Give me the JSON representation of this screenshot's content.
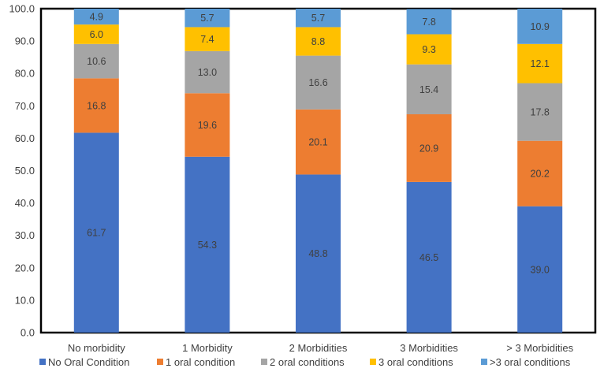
{
  "chart_data": {
    "type": "bar",
    "stacked": true,
    "title": "",
    "xlabel": "",
    "ylabel": "",
    "ylim": [
      0,
      100
    ],
    "yticks": [
      "0.0",
      "10.0",
      "20.0",
      "30.0",
      "40.0",
      "50.0",
      "60.0",
      "70.0",
      "80.0",
      "90.0",
      "100.0"
    ],
    "ytick_values": [
      0,
      10,
      20,
      30,
      40,
      50,
      60,
      70,
      80,
      90,
      100
    ],
    "grid": false,
    "legend_position": "bottom",
    "categories": [
      "No morbidity",
      "1 Morbidity",
      "2 Morbidities",
      "3 Morbidities",
      "> 3 Morbidities"
    ],
    "series": [
      {
        "name": "No Oral Condition",
        "color": "#4472C4",
        "values": [
          61.7,
          54.3,
          48.8,
          46.5,
          39.0
        ],
        "labels": [
          "61.7",
          "54.3",
          "48.8",
          "46.5",
          "39.0"
        ]
      },
      {
        "name": "1 oral condition",
        "color": "#ED7D31",
        "values": [
          16.8,
          19.6,
          20.1,
          20.9,
          20.2
        ],
        "labels": [
          "16.8",
          "19.6",
          "20.1",
          "20.9",
          "20.2"
        ]
      },
      {
        "name": "2 oral conditions",
        "color": "#A5A5A5",
        "values": [
          10.6,
          13.0,
          16.6,
          15.4,
          17.8
        ],
        "labels": [
          "10.6",
          "13.0",
          "16.6",
          "15.4",
          "17.8"
        ]
      },
      {
        "name": "3 oral conditions",
        "color": "#FFC000",
        "values": [
          6.0,
          7.4,
          8.8,
          9.3,
          12.1
        ],
        "labels": [
          "6.0",
          "7.4",
          "8.8",
          "9.3",
          "12.1"
        ]
      },
      {
        "name": ">3 oral conditions",
        "color": "#5B9BD5",
        "values": [
          4.9,
          5.7,
          5.7,
          7.8,
          10.9
        ],
        "labels": [
          "4.9",
          "5.7",
          "5.7",
          "7.8",
          "10.9"
        ]
      }
    ]
  }
}
